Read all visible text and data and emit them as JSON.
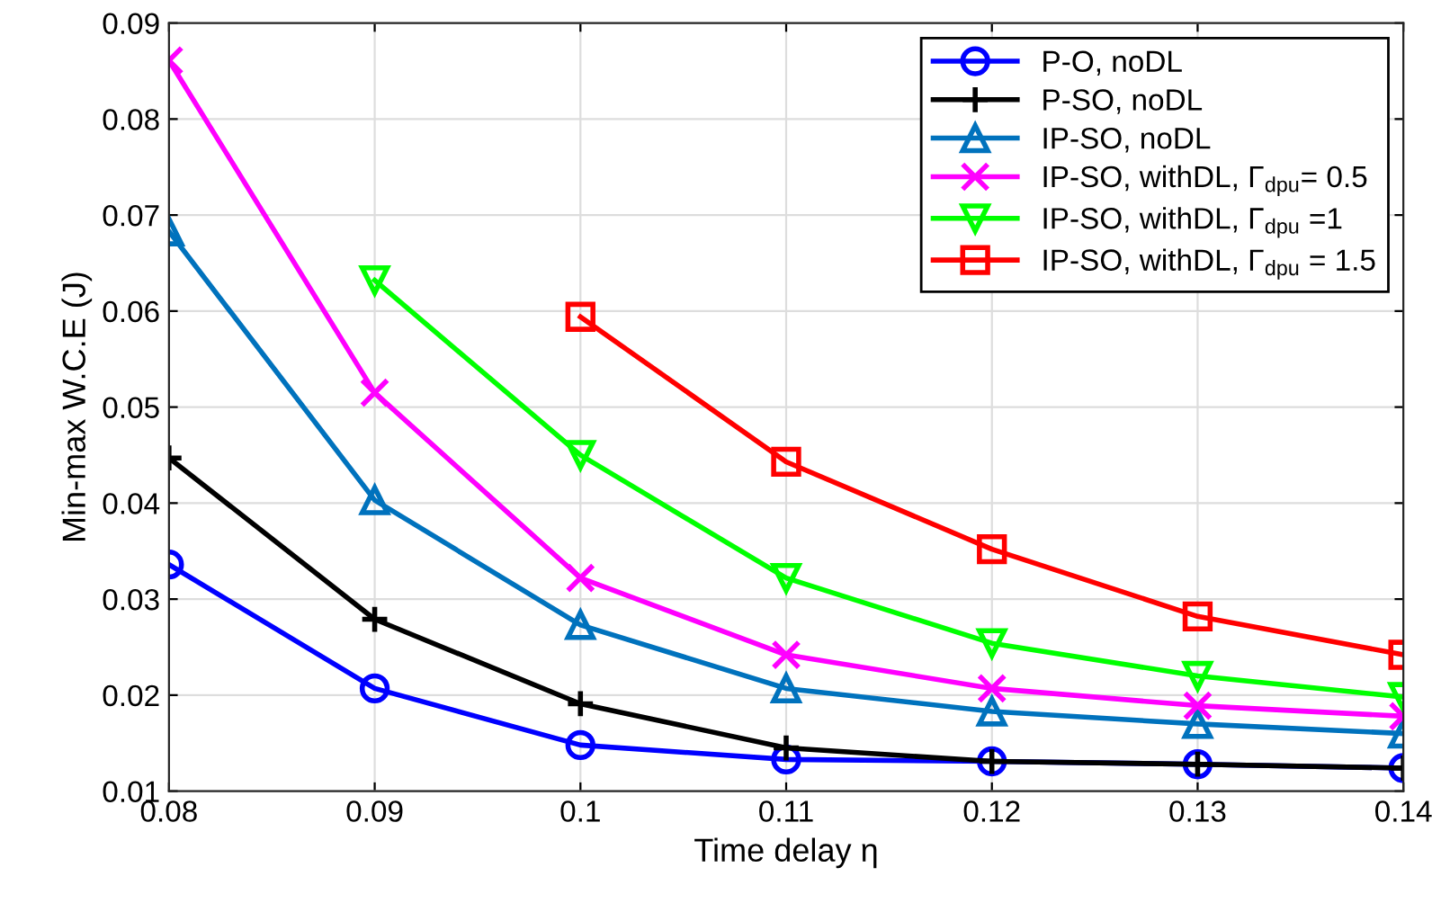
{
  "chart_data": {
    "type": "line",
    "xlabel": "Time delay η",
    "ylabel": "Min-max W.C.E (J)",
    "x": [
      0.08,
      0.09,
      0.1,
      0.11,
      0.12,
      0.13,
      0.14
    ],
    "series": [
      {
        "name": "P-O, noDL",
        "color": "#0000ff",
        "marker": "circle",
        "values": [
          0.0336,
          0.0207,
          0.0148,
          0.0133,
          0.0131,
          0.0128,
          0.0124
        ]
      },
      {
        "name": "P-SO, noDL",
        "color": "#000000",
        "marker": "plus",
        "values": [
          0.0447,
          0.0279,
          0.0191,
          0.0145,
          0.0131,
          0.0128,
          0.0124
        ]
      },
      {
        "name": "IP-SO, noDL",
        "color": "#0072bd",
        "marker": "triangle",
        "values": [
          0.0683,
          0.0403,
          0.0273,
          0.0207,
          0.0183,
          0.017,
          0.016
        ]
      },
      {
        "name": "IP-SO, withDL, Γ$_{dpu}$= 0.5",
        "color": "#ff00ff",
        "marker": "cross",
        "values": [
          0.0861,
          0.0515,
          0.0322,
          0.0242,
          0.0207,
          0.0189,
          0.0178
        ]
      },
      {
        "name": "IP-SO, withDL, Γ$_{dpu}$ =1",
        "color": "#00ff00",
        "marker": "triangle_down",
        "values": [
          null,
          0.0632,
          0.045,
          0.0322,
          0.0254,
          0.022,
          0.0198
        ]
      },
      {
        "name": "IP-SO, withDL, Γ$_{dpu}$ = 1.5",
        "color": "#ff0000",
        "marker": "square",
        "values": [
          null,
          null,
          0.0594,
          0.0443,
          0.0352,
          0.0282,
          0.0242
        ]
      }
    ],
    "xlim": [
      0.08,
      0.14
    ],
    "xticks": [
      0.08,
      0.09,
      {
        "value": 0.1,
        "label": "0.1"
      },
      0.11,
      0.12,
      0.13,
      0.14
    ],
    "ylim": [
      0.01,
      0.09
    ],
    "yticks": [
      0.01,
      0.02,
      0.03,
      0.04,
      0.05,
      0.06,
      0.07,
      0.08,
      0.09
    ],
    "grid": true,
    "legend": "top right",
    "line_style": "solid"
  }
}
